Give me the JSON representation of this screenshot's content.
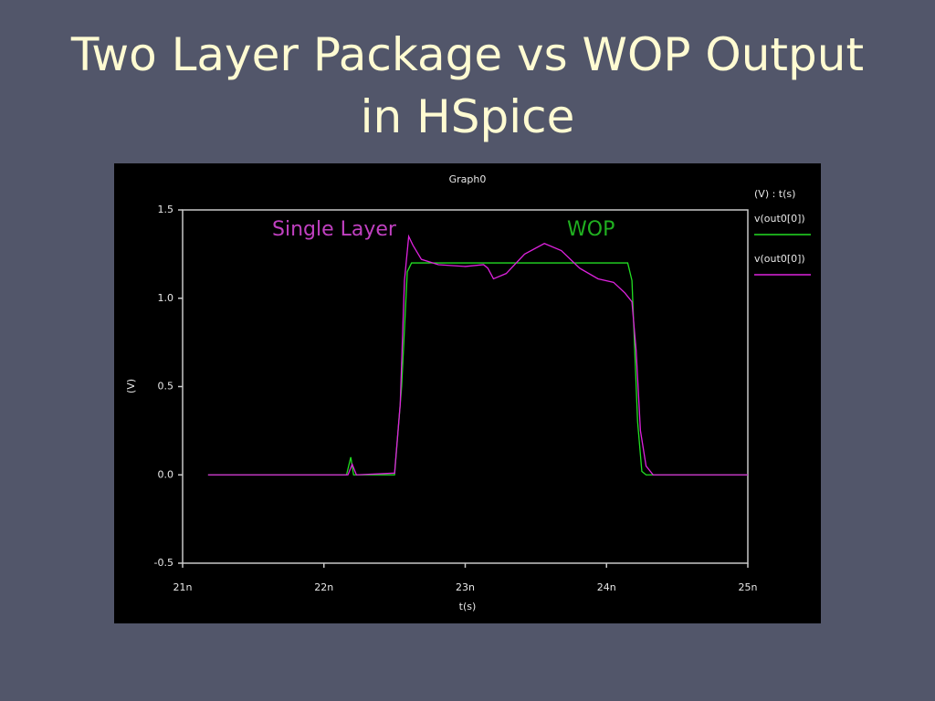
{
  "slide": {
    "title_lines": [
      "Two Layer Package vs WOP Output",
      "in HSpice"
    ]
  },
  "chart_data": {
    "type": "line",
    "title": "Graph0",
    "x_label": "t(s)",
    "y_label": "(V)",
    "legend_title": "(V) : t(s)",
    "annotations": [
      {
        "text": "Single Layer",
        "color": "#c040c0"
      },
      {
        "text": "WOP",
        "color": "#20b020"
      }
    ],
    "xlim": [
      21,
      25
    ],
    "xticks": [
      {
        "value": 21,
        "label": "21n"
      },
      {
        "value": 22,
        "label": "22n"
      },
      {
        "value": 23,
        "label": "23n"
      },
      {
        "value": 24,
        "label": "24n"
      },
      {
        "value": 25,
        "label": "25n"
      }
    ],
    "ylim": [
      -0.5,
      1.5
    ],
    "yticks": [
      -0.5,
      {
        "value": 0,
        "label": "0.0"
      },
      0.5,
      {
        "value": 1,
        "label": "1.0"
      },
      1.5
    ],
    "series": [
      {
        "name": "v(out0[0])",
        "color": "#22dd22",
        "x": [
          21.18,
          22.16,
          22.19,
          22.21,
          22.5,
          22.55,
          22.59,
          22.62,
          23.13,
          24.15,
          24.18,
          24.22,
          24.25,
          24.28,
          25
        ],
        "values": [
          0,
          0,
          0.1,
          0,
          0,
          0.5,
          1.15,
          1.2,
          1.2,
          1.2,
          1.1,
          0.3,
          0.02,
          0,
          0
        ]
      },
      {
        "name": "v(out0[0])",
        "color": "#dd22dd",
        "x": [
          21.18,
          22.17,
          22.2,
          22.23,
          22.5,
          22.54,
          22.57,
          22.6,
          22.63,
          22.69,
          22.81,
          23.0,
          23.13,
          23.16,
          23.2,
          23.29,
          23.42,
          23.56,
          23.68,
          23.81,
          23.94,
          24.05,
          24.13,
          24.18,
          24.21,
          24.24,
          24.28,
          24.33,
          25
        ],
        "values": [
          0,
          0,
          0.06,
          0,
          0.01,
          0.4,
          1.1,
          1.35,
          1.3,
          1.22,
          1.19,
          1.18,
          1.19,
          1.17,
          1.11,
          1.14,
          1.25,
          1.31,
          1.27,
          1.17,
          1.11,
          1.09,
          1.03,
          0.98,
          0.7,
          0.25,
          0.05,
          0,
          0
        ]
      }
    ]
  }
}
